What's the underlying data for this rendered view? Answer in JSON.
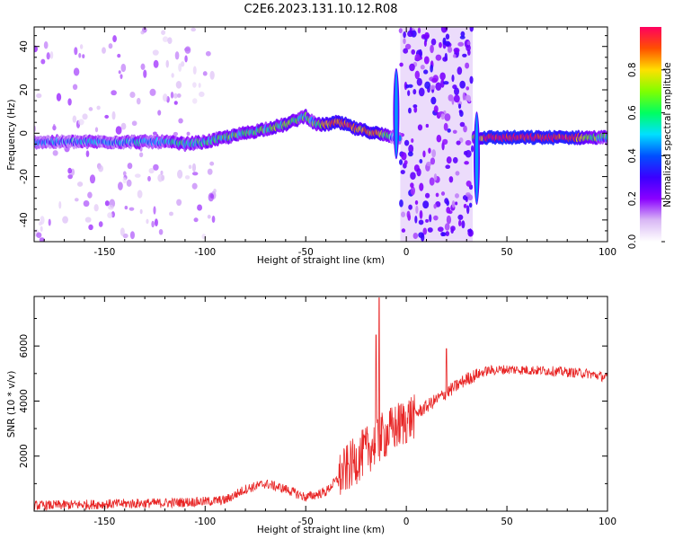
{
  "figure": {
    "title": "C2E6.2023.131.10.12.R08"
  },
  "chart_data": [
    {
      "type": "heatmap",
      "xlabel": "Height of straight line (km)",
      "ylabel": "Frequency (Hz)",
      "xlim": [
        -185,
        100
      ],
      "ylim": [
        -50,
        49
      ],
      "xticks": [
        -150,
        -100,
        -50,
        0,
        50,
        100
      ],
      "yticks": [
        -40,
        -20,
        0,
        20,
        40
      ],
      "colorbar": {
        "label": "Normalized spectral amplitude",
        "range": [
          0,
          1
        ],
        "ticks": [
          "0.0",
          "0.2",
          "0.4",
          "0.6",
          "0.8"
        ],
        "colors": [
          "#ffffff",
          "#d9b8f5",
          "#8a00ff",
          "#3a00ff",
          "#0050ff",
          "#00e0ff",
          "#00ff60",
          "#80ff00",
          "#ffe000",
          "#ff5000",
          "#ff0060"
        ]
      },
      "ridge": {
        "x": [
          -185,
          -175,
          -165,
          -150,
          -135,
          -120,
          -110,
          -100,
          -90,
          -80,
          -70,
          -60,
          -55,
          -50,
          -45,
          -40,
          -35,
          -30,
          -25,
          -20,
          -15,
          -10,
          -5,
          35,
          40,
          60,
          80,
          100
        ],
        "y": [
          -4,
          -4,
          -4,
          -4,
          -4,
          -4,
          -5,
          -4,
          -2,
          0,
          2,
          4,
          6,
          8,
          4,
          4,
          5,
          4,
          2,
          1,
          0,
          -1,
          -2,
          -2,
          -2,
          -2,
          -2,
          -2
        ],
        "amplitude": [
          0.4,
          0.4,
          0.45,
          0.45,
          0.45,
          0.5,
          0.55,
          0.55,
          0.6,
          0.6,
          0.6,
          0.65,
          0.6,
          0.55,
          0.6,
          0.8,
          0.9,
          0.95,
          0.85,
          0.8,
          0.8,
          0.6,
          0.3,
          0.7,
          1.0,
          1.0,
          0.95,
          0.5
        ]
      },
      "bursts": [
        {
          "x": -5,
          "y": [
            -12,
            30
          ]
        },
        {
          "x": 35,
          "y": [
            -33,
            10
          ]
        }
      ],
      "noise_bands": [
        {
          "x": [
            -185,
            -95
          ],
          "density": 0.3
        },
        {
          "x": [
            -3,
            33
          ],
          "density": 1.0
        }
      ]
    },
    {
      "type": "line",
      "xlabel": "Height of straight line (km)",
      "ylabel": "SNR (10 * v/v)",
      "xlim": [
        -185,
        100
      ],
      "ylim": [
        0,
        7800
      ],
      "xticks": [
        -150,
        -100,
        -50,
        0,
        50,
        100
      ],
      "yticks": [
        2000,
        4000,
        6000
      ],
      "color": "#e82626",
      "envelope": {
        "x": [
          -185,
          -120,
          -100,
          -90,
          -80,
          -70,
          -60,
          -50,
          -40,
          -30,
          -20,
          -15,
          -12,
          -10,
          0,
          10,
          20,
          30,
          40,
          50,
          70,
          90,
          100
        ],
        "y": [
          200,
          300,
          350,
          400,
          800,
          1000,
          800,
          500,
          700,
          1500,
          2200,
          2500,
          2700,
          2800,
          3300,
          3800,
          4300,
          4800,
          5100,
          5150,
          5100,
          5000,
          4850
        ]
      },
      "spikes": [
        {
          "x": -13.5,
          "y": 7750
        },
        {
          "x": -15,
          "y": 6400
        },
        {
          "x": 20,
          "y": 5900
        }
      ]
    }
  ]
}
